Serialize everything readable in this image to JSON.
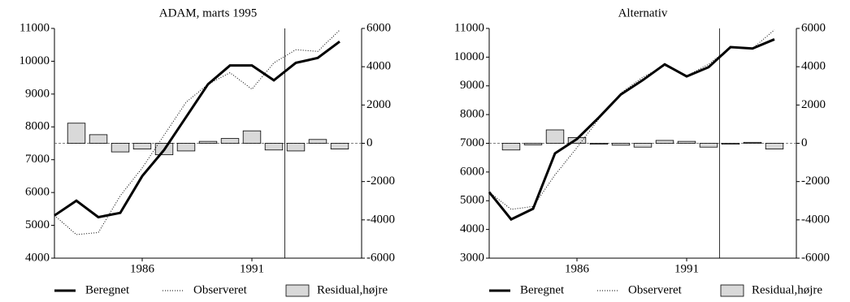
{
  "chart_data": [
    {
      "type": "line",
      "title": "ADAM, marts 1995",
      "x": [
        1982,
        1983,
        1984,
        1985,
        1986,
        1987,
        1988,
        1989,
        1990,
        1991,
        1992,
        1993,
        1994,
        1995
      ],
      "xlim": [
        1982,
        1996
      ],
      "xticks": [
        1986,
        1991
      ],
      "vline": 1992.5,
      "ylim": [
        4000,
        11000
      ],
      "yticks": [
        4000,
        5000,
        6000,
        7000,
        8000,
        9000,
        10000,
        11000
      ],
      "y2lim": [
        -6000,
        6000
      ],
      "y2ticks": [
        -6000,
        -4000,
        -2000,
        0,
        2000,
        4000,
        6000
      ],
      "series": [
        {
          "name": "Beregnet",
          "color": "#000000",
          "line_style": "solid",
          "values": [
            5300,
            5750,
            5250,
            5380,
            6500,
            7300,
            8300,
            9300,
            9870,
            9870,
            9420,
            9950,
            10100,
            10600
          ]
        },
        {
          "name": "Observeret",
          "color": "#000000",
          "line_style": "dotted",
          "values": [
            5300,
            4720,
            4780,
            5900,
            6750,
            7750,
            8750,
            9300,
            9650,
            9150,
            9950,
            10350,
            10300,
            10950
          ]
        },
        {
          "name": "Residual,højre",
          "color": "#d9d9d9",
          "type": "bar",
          "axis": "y2",
          "values": [
            null,
            1050,
            450,
            -450,
            -300,
            -600,
            -400,
            100,
            250,
            650,
            -350,
            -400,
            200,
            -300
          ]
        }
      ]
    },
    {
      "type": "line",
      "title": "Alternativ",
      "x": [
        1982,
        1983,
        1984,
        1985,
        1986,
        1987,
        1988,
        1989,
        1990,
        1991,
        1992,
        1993,
        1994,
        1995
      ],
      "xlim": [
        1982,
        1996
      ],
      "xticks": [
        1986,
        1991
      ],
      "vline": 1992.5,
      "ylim": [
        3000,
        11000
      ],
      "yticks": [
        3000,
        4000,
        5000,
        6000,
        7000,
        8000,
        9000,
        10000,
        11000
      ],
      "y2lim": [
        -6000,
        6000
      ],
      "y2ticks": [
        -6000,
        -4000,
        -2000,
        0,
        2000,
        4000,
        6000
      ],
      "series": [
        {
          "name": "Beregnet",
          "color": "#000000",
          "line_style": "solid",
          "values": [
            5300,
            4350,
            4720,
            6650,
            7150,
            7900,
            8700,
            9200,
            9750,
            9330,
            9650,
            10350,
            10300,
            10620
          ]
        },
        {
          "name": "Observeret",
          "color": "#000000",
          "line_style": "dotted",
          "values": [
            5300,
            4700,
            4800,
            5900,
            6850,
            7850,
            8750,
            9300,
            9700,
            9350,
            9750,
            10350,
            10300,
            10950
          ]
        },
        {
          "name": "Residual,højre",
          "color": "#d9d9d9",
          "type": "bar",
          "axis": "y2",
          "values": [
            null,
            -350,
            -80,
            700,
            300,
            -50,
            -100,
            -200,
            150,
            100,
            -200,
            -50,
            50,
            -300
          ]
        }
      ]
    }
  ]
}
